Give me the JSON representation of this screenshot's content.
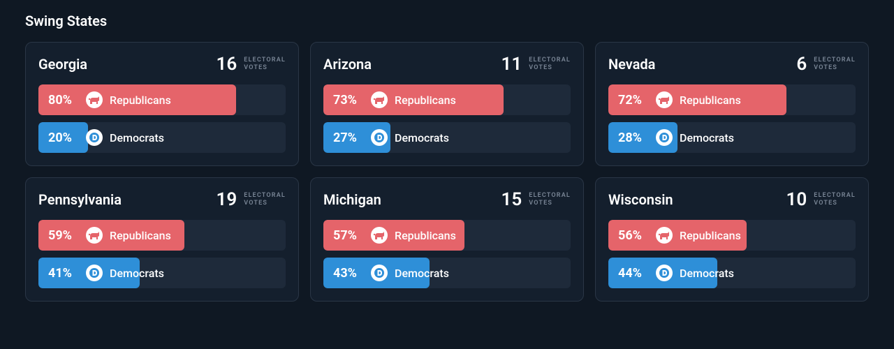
{
  "section_title": "Swing States",
  "ev_label_line1": "ELECTORAL",
  "ev_label_line2": "VOTES",
  "colors": {
    "background": "#0f1823",
    "card_bg": "#141f2d",
    "card_border": "#2a3646",
    "track_bg": "#1e2a3a",
    "republican": "#e5646a",
    "democrat": "#2e8fd8",
    "ev_label": "#7a8696"
  },
  "parties": {
    "rep": {
      "label": "Republicans",
      "color": "#e5646a",
      "icon_fill": "#e5646a"
    },
    "dem": {
      "label": "Democrats",
      "color": "#2e8fd8",
      "icon_fill": "#2e8fd8"
    }
  },
  "states": [
    {
      "name": "Georgia",
      "ev": 16,
      "rep_pct": 80,
      "dem_pct": 20
    },
    {
      "name": "Arizona",
      "ev": 11,
      "rep_pct": 73,
      "dem_pct": 27
    },
    {
      "name": "Nevada",
      "ev": 6,
      "rep_pct": 72,
      "dem_pct": 28
    },
    {
      "name": "Pennsylvania",
      "ev": 19,
      "rep_pct": 59,
      "dem_pct": 41
    },
    {
      "name": "Michigan",
      "ev": 15,
      "rep_pct": 57,
      "dem_pct": 43
    },
    {
      "name": "Wisconsin",
      "ev": 10,
      "rep_pct": 56,
      "dem_pct": 44
    }
  ]
}
